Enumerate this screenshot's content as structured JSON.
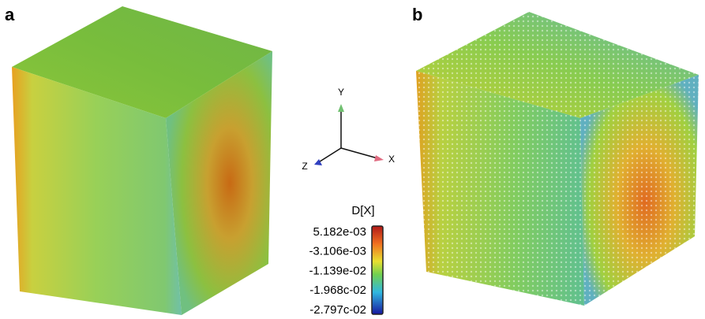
{
  "panels": {
    "a": {
      "label": "a"
    },
    "b": {
      "label": "b"
    }
  },
  "axes_triad": {
    "x": "X",
    "y": "Y",
    "z": "Z"
  },
  "colorbar": {
    "title": "D[X]",
    "ticks": [
      "5.182e-03",
      "-3.106e-03",
      "-1.139e-02",
      "-1.968c-02",
      "-2.797c-02"
    ]
  }
}
